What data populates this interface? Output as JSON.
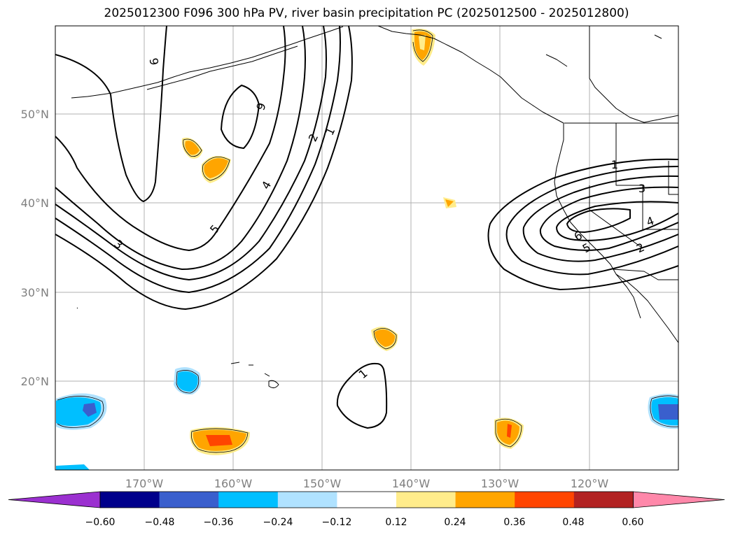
{
  "title": "2025012300 F096 300 hPa PV, river basin precipitation PC (2025012500 - 2025012800)",
  "map": {
    "lon_labels": [
      "170°W",
      "160°W",
      "150°W",
      "140°W",
      "130°W",
      "120°W"
    ],
    "lat_labels": [
      "50°N",
      "40°N",
      "30°N",
      "20°N"
    ],
    "pv_contour_labels": [
      "6",
      "6",
      "5",
      "4",
      "3",
      "2",
      "1",
      "1",
      "3",
      "4",
      "5",
      "6",
      "2",
      "1"
    ]
  },
  "colorbar": {
    "ticks": [
      "−0.60",
      "−0.48",
      "−0.36",
      "−0.24",
      "−0.12",
      "0.12",
      "0.24",
      "0.36",
      "0.48",
      "0.60"
    ],
    "colors": [
      "#9b30d0",
      "#00008b",
      "#3a5fcd",
      "#00bfff",
      "#b0e2ff",
      "#ffffff",
      "#ffec8b",
      "#ffa500",
      "#ff4500",
      "#b22222",
      "#ff88aa"
    ]
  }
}
